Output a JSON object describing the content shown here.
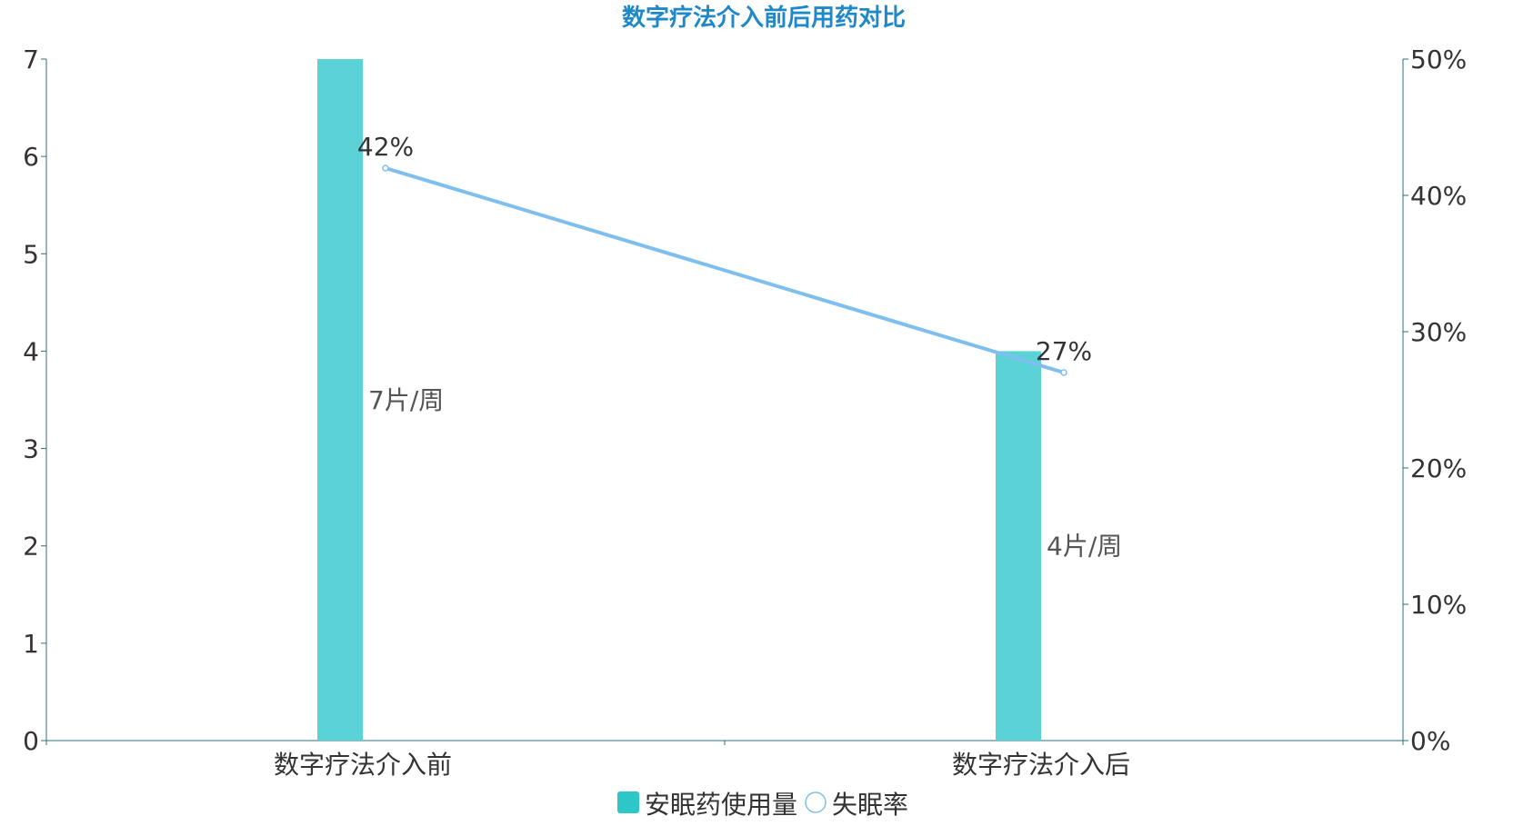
{
  "chart_data": {
    "type": "bar",
    "title": "数字疗法介入前后用药对比",
    "categories": [
      "数字疗法介入前",
      "数字疗法介入后"
    ],
    "y_left": {
      "min": 0,
      "max": 7,
      "ticks": [
        "0",
        "1",
        "2",
        "3",
        "4",
        "5",
        "6",
        "7"
      ]
    },
    "y_right": {
      "min": 0,
      "max": 50,
      "ticks": [
        "0%",
        "10%",
        "20%",
        "30%",
        "40%",
        "50%"
      ]
    },
    "series": [
      {
        "name": "安眠药使用量",
        "type": "bar",
        "axis": "left",
        "values": [
          7,
          4
        ],
        "labels": [
          "7片/周",
          "4片/周"
        ],
        "color": "#5ad2d6"
      },
      {
        "name": "失眠率",
        "type": "line",
        "axis": "right",
        "values": [
          42,
          27
        ],
        "labels": [
          "42%",
          "27%"
        ],
        "color": "#7fbfee"
      }
    ],
    "legend": {
      "position": "bottom-center",
      "items": [
        {
          "label": "安眠药使用量",
          "color": "#2ec7c9",
          "icon": "square"
        },
        {
          "label": "失眠率",
          "color": "#7fbfee",
          "icon": "hollow-circle"
        }
      ]
    },
    "axis_color": "#2f6f7f",
    "title_color": "#1e88c8",
    "grid": false
  }
}
